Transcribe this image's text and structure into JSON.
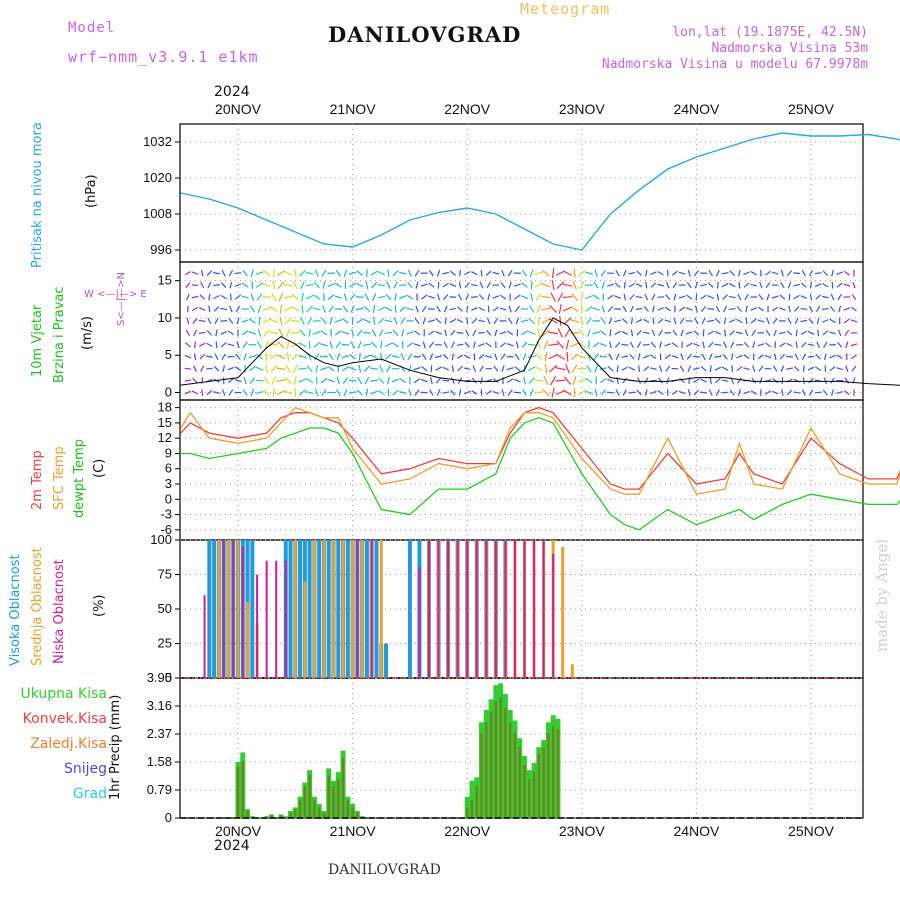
{
  "header": {
    "model_label": "Model",
    "model_name": "wrf−nmm_v3.9.1  e1km",
    "title": "DANILOVGRAD",
    "meteogram": "Meteogram",
    "lonlat": "lon,lat (19.1875E, 42.5N)",
    "altitude": "Nadmorska Visina 53m",
    "model_altitude": "Nadmorska Visina u modelu 67.9978m"
  },
  "footer": {
    "location": "DANILOVGRAD",
    "watermark": "made by Angel"
  },
  "top_axis": {
    "year": "2024"
  },
  "bottom_axis": {
    "year": "2024"
  },
  "days": [
    "20NOV",
    "21NOV",
    "22NOV",
    "23NOV",
    "24NOV",
    "25NOV"
  ],
  "labels": {
    "pressure": "Pritisak na nivou mora",
    "pressure_unit": "(hPa)",
    "wind_a": "10m Vjetar",
    "wind_b": "Brzina i Pravac",
    "wind_unit": "(m/s)",
    "compass_ns": "S<—|—>N",
    "compass_we": "W <—|—> E",
    "temp_a": "2m Temp",
    "temp_b": "SFC Temp",
    "temp_c": "dewpt Temp",
    "temp_unit": "(C)",
    "cloud_high": "Visoka Oblacnost",
    "cloud_mid": "Srednja Oblacnost",
    "cloud_low": "Niska Oblacnost",
    "cloud_unit": "(%)",
    "precip_total": "Ukupna Kisa",
    "precip_conv": "Konvek.Kisa",
    "precip_frz": "Zaledj.Kisa",
    "precip_snow": "Snijeg",
    "precip_hail": "Grad",
    "precip_axis": "1hr Precip (mm)"
  },
  "colors": {
    "pressure": "#2aa6e0",
    "temp2m": "#e8413c",
    "sfc": "#e8a030",
    "dew": "#22cc22",
    "cloud_high": "#2299dd",
    "cloud_mid": "#e8a030",
    "cloud_low": "#cc1f8f",
    "precip_total": "#33cc33",
    "precip_conv": "#e84040",
    "precip_frz": "#ee7f33",
    "precip_snow": "#4a4ae0",
    "precip_hail": "#33cccc",
    "model_label": "#c266e0",
    "meteogram": "#f0c060"
  },
  "chart_data": [
    {
      "type": "line",
      "title": "",
      "ylabel": "Pritisak na nivou mora (hPa)",
      "yticks": [
        "996",
        "1008",
        "1020",
        "1032"
      ],
      "ylim": [
        992,
        1038
      ],
      "x_unit": "hours since 20NOV 00UTC",
      "series": [
        {
          "name": "Pritisak na nivou mora",
          "x": [
            -12,
            -6,
            0,
            6,
            12,
            18,
            24,
            30,
            36,
            42,
            48,
            54,
            60,
            66,
            72,
            78,
            84,
            90,
            96,
            102,
            108,
            114,
            120,
            126,
            132,
            138,
            142
          ],
          "values": [
            1015,
            1013,
            1010,
            1006,
            1002,
            998,
            997,
            1001,
            1006,
            1008.5,
            1010,
            1008,
            1003,
            998,
            996,
            1008,
            1016,
            1023,
            1027,
            1030,
            1033,
            1035,
            1034,
            1034,
            1034.5,
            1033,
            1031
          ]
        }
      ]
    },
    {
      "type": "line",
      "title": "",
      "ylabel": "10m Vjetar Brzina i Pravac (m/s)",
      "yticks": [
        "0",
        "5",
        "10",
        "15"
      ],
      "ylim": [
        -1,
        17.5
      ],
      "x_unit": "hours since 20NOV 00UTC",
      "series": [
        {
          "name": "speed",
          "x": [
            -12,
            -6,
            0,
            3,
            6,
            9,
            12,
            15,
            18,
            21,
            24,
            30,
            36,
            42,
            48,
            54,
            60,
            63,
            66,
            69,
            72,
            78,
            84,
            90,
            96,
            102,
            108,
            114,
            120,
            126,
            132,
            138,
            142
          ],
          "values": [
            1,
            1.5,
            2,
            4,
            6,
            7.5,
            6.5,
            5,
            4,
            3.5,
            4,
            4.5,
            3,
            2,
            1.5,
            1.5,
            3,
            7,
            10,
            9,
            6,
            2,
            1.5,
            1.5,
            2,
            2,
            1.5,
            1.5,
            1.5,
            1.5,
            1.2,
            1,
            0.8
          ]
        }
      ]
    },
    {
      "type": "line",
      "title": "",
      "ylabel": "Temp (C)",
      "yticks": [
        "-6",
        "-3",
        "0",
        "3",
        "6",
        "9",
        "12",
        "15",
        "18"
      ],
      "ylim": [
        -8,
        19.5
      ],
      "x_unit": "hours since 20NOV 00UTC",
      "series": [
        {
          "name": "2m Temp",
          "x": [
            -12,
            -10,
            -6,
            0,
            6,
            9,
            12,
            15,
            18,
            21,
            24,
            30,
            36,
            42,
            48,
            54,
            57,
            60,
            63,
            66,
            72,
            78,
            81,
            84,
            90,
            96,
            102,
            105,
            108,
            114,
            120,
            126,
            132,
            138,
            142
          ],
          "values": [
            13,
            15,
            13,
            12,
            13,
            16,
            17,
            17,
            16,
            15,
            12,
            5,
            6,
            8,
            7,
            7,
            13,
            17,
            18,
            17,
            10,
            3,
            2,
            2,
            9,
            3,
            4,
            9,
            5,
            3,
            12,
            7,
            4,
            4,
            13
          ]
        },
        {
          "name": "SFC Temp",
          "x": [
            -12,
            -10,
            -6,
            0,
            6,
            9,
            12,
            15,
            18,
            21,
            24,
            30,
            36,
            42,
            48,
            54,
            57,
            60,
            63,
            66,
            72,
            78,
            81,
            84,
            90,
            96,
            102,
            105,
            108,
            114,
            120,
            126,
            132,
            138,
            142
          ],
          "values": [
            14,
            17,
            12,
            11,
            12,
            15,
            18,
            17,
            16,
            16,
            10,
            3,
            4,
            7,
            6,
            7,
            14,
            17,
            17,
            16,
            8,
            2,
            1,
            1,
            12,
            1,
            2,
            11,
            3,
            2,
            14,
            5,
            3,
            3,
            16
          ]
        },
        {
          "name": "dewpt Temp",
          "x": [
            -12,
            -10,
            -6,
            0,
            6,
            9,
            12,
            15,
            18,
            21,
            24,
            30,
            36,
            42,
            48,
            54,
            57,
            60,
            63,
            66,
            72,
            78,
            81,
            84,
            90,
            96,
            102,
            105,
            108,
            114,
            120,
            126,
            132,
            138,
            142
          ],
          "values": [
            9,
            9,
            8,
            9,
            10,
            12,
            13,
            14,
            14,
            13,
            9,
            -2,
            -3,
            2,
            2,
            5,
            12,
            15,
            16,
            15,
            5,
            -3,
            -5,
            -6,
            -2,
            -5,
            -3,
            -2,
            -4,
            -1,
            1,
            0,
            -1,
            -1,
            3
          ]
        }
      ]
    },
    {
      "type": "bar",
      "title": "",
      "ylabel": "Oblacnost (%)",
      "yticks": [
        "0",
        "25",
        "50",
        "75",
        "100"
      ],
      "ylim": [
        0,
        100
      ],
      "x_unit": "hours since 20NOV 00UTC",
      "series": [
        {
          "name": "Visoka Oblacnost",
          "x": [
            -6,
            -5,
            -4,
            -3,
            -2,
            -1,
            0,
            1,
            2,
            3,
            10,
            11,
            12,
            13,
            14,
            15,
            16,
            17,
            18,
            19,
            20,
            21,
            22,
            23,
            24,
            25,
            26,
            27,
            28,
            29,
            30,
            31,
            36,
            38,
            40,
            42,
            44,
            46,
            48,
            50,
            52,
            54,
            56
          ],
          "values": [
            100,
            100,
            100,
            100,
            100,
            100,
            100,
            100,
            100,
            100,
            100,
            100,
            100,
            100,
            100,
            100,
            100,
            100,
            100,
            100,
            100,
            100,
            100,
            100,
            100,
            100,
            100,
            100,
            100,
            100,
            25,
            25,
            100,
            100,
            100,
            100,
            100,
            100,
            100,
            100,
            100,
            100,
            100
          ]
        },
        {
          "name": "Srednja Oblacnost",
          "x": [
            -4,
            -2,
            0,
            2,
            4,
            12,
            14,
            16,
            18,
            20,
            22,
            24,
            26,
            28,
            30,
            40,
            42,
            44,
            46,
            48,
            50,
            52,
            54,
            56,
            58,
            60,
            62,
            64,
            66,
            68,
            70
          ],
          "values": [
            100,
            100,
            100,
            55,
            40,
            100,
            70,
            100,
            100,
            100,
            100,
            100,
            100,
            100,
            100,
            100,
            100,
            100,
            100,
            100,
            100,
            100,
            100,
            100,
            100,
            100,
            100,
            100,
            100,
            95,
            10
          ]
        },
        {
          "name": "Niska Oblacnost",
          "x": [
            -7,
            -3,
            -1,
            1,
            4,
            6,
            8,
            10,
            25,
            28,
            38,
            40,
            42,
            44,
            46,
            48,
            50,
            52,
            54,
            56,
            58,
            60,
            62,
            64,
            66
          ],
          "values": [
            60,
            100,
            100,
            95,
            75,
            85,
            85,
            85,
            100,
            100,
            80,
            100,
            100,
            100,
            100,
            100,
            100,
            100,
            100,
            100,
            100,
            100,
            100,
            100,
            90
          ]
        }
      ]
    },
    {
      "type": "bar",
      "title": "",
      "ylabel": "1hr Precip (mm)",
      "yticks": [
        "0",
        "0.79",
        "1.58",
        "2.37",
        "3.16",
        "3.95"
      ],
      "ylim": [
        0,
        3.95
      ],
      "x_unit": "hours since 20NOV 00UTC",
      "series": [
        {
          "name": "Ukupna Kisa",
          "x": [
            -1,
            0,
            1,
            2,
            3,
            6,
            7,
            9,
            10,
            11,
            12,
            13,
            14,
            15,
            16,
            17,
            18,
            19,
            20,
            21,
            22,
            23,
            24,
            25,
            26,
            48,
            49,
            50,
            51,
            52,
            53,
            54,
            55,
            56,
            57,
            58,
            59,
            60,
            61,
            62,
            63,
            64,
            65,
            66,
            67,
            68
          ],
          "values": [
            0,
            1.58,
            1.85,
            0.25,
            0.05,
            0.05,
            0.1,
            0.1,
            0.05,
            0.2,
            0.3,
            0.6,
            1.0,
            1.35,
            0.6,
            0.4,
            0.2,
            1.4,
            1.05,
            1.3,
            1.9,
            0.6,
            0.4,
            0.2,
            0.05,
            0.6,
            1.05,
            1.15,
            2.7,
            3.05,
            3.35,
            3.75,
            3.8,
            3.5,
            3.05,
            2.75,
            2.25,
            1.75,
            1.35,
            1.55,
            2.0,
            2.2,
            2.7,
            2.9,
            2.8,
            0
          ]
        },
        {
          "name": "Konvek.Kisa",
          "x": [
            -1,
            0,
            1,
            2,
            3,
            6,
            7,
            9,
            10,
            11,
            12,
            13,
            14,
            15,
            16,
            17,
            18,
            19,
            20,
            21,
            22,
            23,
            24,
            25,
            26,
            48,
            49,
            50,
            51,
            52,
            53,
            54,
            55,
            56,
            57,
            58,
            59,
            60,
            61,
            62,
            63,
            64,
            65,
            66,
            67,
            68
          ],
          "values": [
            0,
            1.45,
            1.6,
            0.2,
            0.04,
            0.04,
            0.08,
            0.08,
            0.04,
            0.15,
            0.25,
            0.5,
            0.9,
            1.2,
            0.5,
            0.3,
            0.15,
            1.2,
            0.9,
            1.1,
            1.7,
            0.5,
            0.3,
            0.15,
            0.04,
            0.3,
            0.5,
            0.9,
            2.4,
            2.7,
            3.0,
            3.3,
            3.4,
            3.1,
            2.7,
            2.4,
            2.0,
            1.5,
            1.1,
            1.3,
            1.8,
            2.0,
            2.4,
            2.6,
            2.5,
            0
          ]
        },
        {
          "name": "Zaledj.Kisa",
          "x": [],
          "values": []
        },
        {
          "name": "Snijeg",
          "x": [],
          "values": []
        },
        {
          "name": "Grad",
          "x": [],
          "values": []
        }
      ]
    }
  ]
}
